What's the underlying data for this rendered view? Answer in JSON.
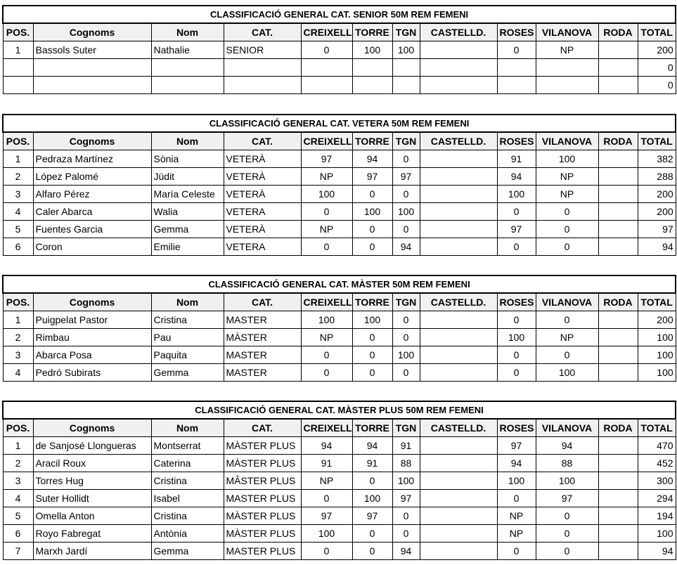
{
  "columns": [
    "POS.",
    "Cognoms",
    "Nom",
    "CAT.",
    "CREIXELL",
    "TORRE",
    "TGN",
    "CASTELLD.",
    "ROSES",
    "VILANOVA",
    "RODA",
    "TOTAL"
  ],
  "tables": [
    {
      "title": "CLASSIFICACIÓ GENERAL CAT. SENIOR 50M REM FEMENI",
      "rows": [
        [
          "1",
          "Bassols Suter",
          "Nathalie",
          "SENIOR",
          "0",
          "100",
          "100",
          "",
          "0",
          "NP",
          "",
          "200"
        ],
        [
          "",
          "",
          "",
          "",
          "",
          "",
          "",
          "",
          "",
          "",
          "",
          "0"
        ],
        [
          "",
          "",
          "",
          "",
          "",
          "",
          "",
          "",
          "",
          "",
          "",
          "0"
        ]
      ]
    },
    {
      "title": "CLASSIFICACIÓ GENERAL CAT. VETERA 50M REM FEMENI",
      "rows": [
        [
          "1",
          "Pedraza Martínez",
          "Sònia",
          "VETERÀ",
          "97",
          "94",
          "0",
          "",
          "91",
          "100",
          "",
          "382"
        ],
        [
          "2",
          "López Palomé",
          "Jüdit",
          "VETERÀ",
          "NP",
          "97",
          "97",
          "",
          "94",
          "NP",
          "",
          "288"
        ],
        [
          "3",
          "Alfaro Pérez",
          "María Celeste",
          "VETERÀ",
          "100",
          "0",
          "0",
          "",
          "100",
          "NP",
          "",
          "200"
        ],
        [
          "4",
          "Caler Abarca",
          "Walia",
          "VETERA",
          "0",
          "100",
          "100",
          "",
          "0",
          "0",
          "",
          "200"
        ],
        [
          "5",
          "Fuentes Garcia",
          "Gemma",
          "VETERÀ",
          "NP",
          "0",
          "0",
          "",
          "97",
          "0",
          "",
          "97"
        ],
        [
          "6",
          "Coron",
          "Emilie",
          "VETERA",
          "0",
          "0",
          "94",
          "",
          "0",
          "0",
          "",
          "94"
        ]
      ]
    },
    {
      "title": "CLASSIFICACIÓ GENERAL CAT. MÀSTER 50M REM FEMENI",
      "rows": [
        [
          "1",
          "Puigpelat Pastor",
          "Cristina",
          "MASTER",
          "100",
          "100",
          "0",
          "",
          "0",
          "0",
          "",
          "200"
        ],
        [
          "2",
          "Rimbau",
          "Pau",
          "MÀSTER",
          "NP",
          "0",
          "0",
          "",
          "100",
          "NP",
          "",
          "100"
        ],
        [
          "3",
          "Abarca Posa",
          "Paquita",
          "MASTER",
          "0",
          "0",
          "100",
          "",
          "0",
          "0",
          "",
          "100"
        ],
        [
          "4",
          "Pedró Subirats",
          "Gemma",
          "MASTER",
          "0",
          "0",
          "0",
          "",
          "0",
          "100",
          "",
          "100"
        ]
      ]
    },
    {
      "title": "CLASSIFICACIÓ GENERAL CAT. MÀSTER PLUS 50M REM FEMENI",
      "rows": [
        [
          "1",
          "de Sanjosé Llongueras",
          "Montserrat",
          "MÀSTER PLUS",
          "94",
          "94",
          "91",
          "",
          "97",
          "94",
          "",
          "470"
        ],
        [
          "2",
          "Aracil Roux",
          "Caterina",
          "MÀSTER PLUS",
          "91",
          "91",
          "88",
          "",
          "94",
          "88",
          "",
          "452"
        ],
        [
          "3",
          "Torres Hug",
          "Cristina",
          "MÂSTER PLUS",
          "NP",
          "0",
          "100",
          "",
          "100",
          "100",
          "",
          "300"
        ],
        [
          "4",
          "Suter Hollidt",
          "Isabel",
          "MASTER PLUS",
          "0",
          "100",
          "97",
          "",
          "0",
          "97",
          "",
          "294"
        ],
        [
          "5",
          "Omella Anton",
          "Cristina",
          "MÀSTER PLUS",
          "97",
          "97",
          "0",
          "",
          "NP",
          "0",
          "",
          "194"
        ],
        [
          "6",
          "Royo Fabregat",
          "Antònia",
          "MÀSTER PLUS",
          "100",
          "0",
          "0",
          "",
          "NP",
          "0",
          "",
          "100"
        ],
        [
          "7",
          "Marxh Jardí",
          "Gemma",
          "MASTER PLUS",
          "0",
          "0",
          "94",
          "",
          "0",
          "0",
          "",
          "94"
        ]
      ]
    }
  ]
}
